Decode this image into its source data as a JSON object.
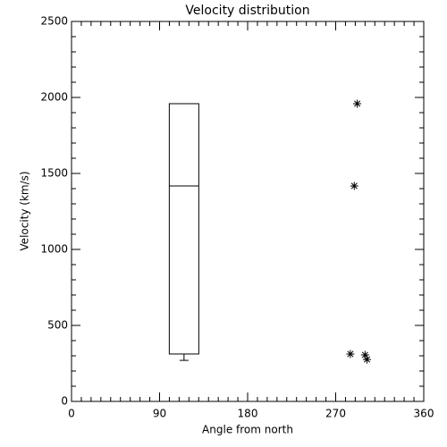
{
  "chart_data": {
    "type": "box",
    "title": "Velocity distribution",
    "xlabel": "Angle from north",
    "ylabel": "Velocity (km/s)",
    "xlim": [
      0,
      360
    ],
    "xticks": [
      0,
      90,
      180,
      270,
      360
    ],
    "ylim": [
      0,
      2500
    ],
    "yticks": [
      0,
      500,
      1000,
      1500,
      2000,
      2500
    ],
    "color": "#000000",
    "boxes": [
      {
        "x": 115,
        "whislo": 270,
        "q1": 312,
        "med": 1418,
        "q3": 1959,
        "whishi": 1959
      }
    ],
    "series": [
      {
        "type": "scatter",
        "marker": "asterisk",
        "x": [
          285,
          289,
          292,
          300,
          302
        ],
        "y": [
          312,
          1418,
          1959,
          306,
          276
        ]
      }
    ]
  }
}
